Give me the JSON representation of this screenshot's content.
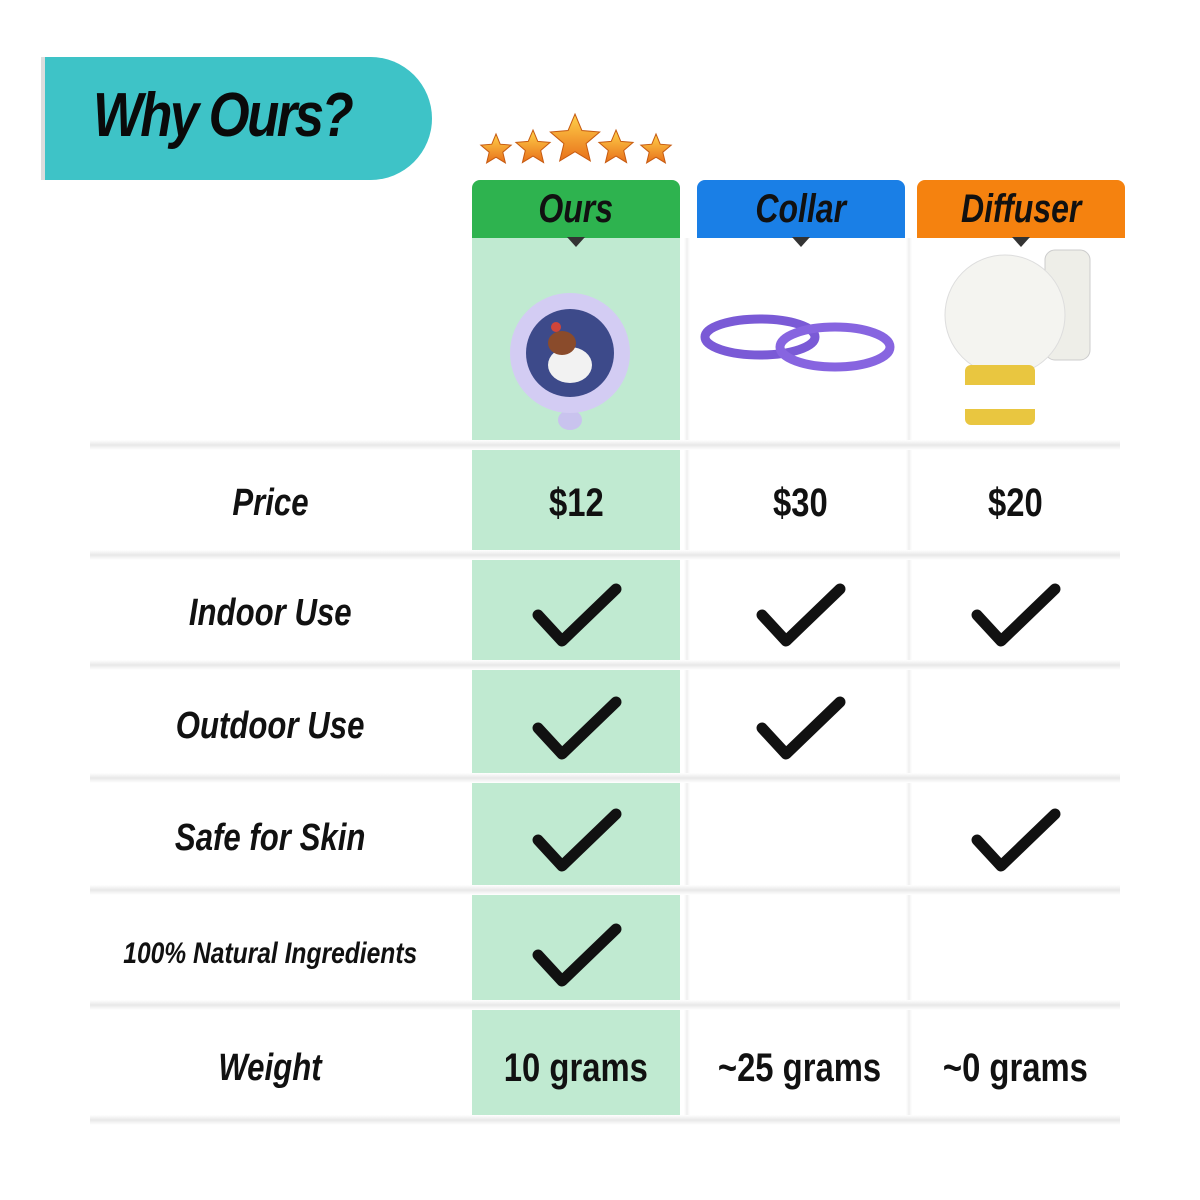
{
  "banner": {
    "title": "Why Ours?",
    "color": "#3ec3c7"
  },
  "rating": {
    "stars": 5,
    "max": 5,
    "color": "#f39a1c"
  },
  "products": [
    {
      "name": "Ours",
      "color": "#2eb34f",
      "image": "round-pet-tag-with-dog"
    },
    {
      "name": "Collar",
      "color": "#1a7fe6",
      "image": "purple-collars"
    },
    {
      "name": "Diffuser",
      "color": "#f5820f",
      "image": "plug-in-diffuser"
    }
  ],
  "highlight_color": "#c0ead1",
  "rows": [
    {
      "label": "Price",
      "values": [
        "$12",
        "$30",
        "$20"
      ]
    },
    {
      "label": "Indoor Use",
      "checks": [
        true,
        true,
        true
      ]
    },
    {
      "label": "Outdoor Use",
      "checks": [
        true,
        true,
        false
      ]
    },
    {
      "label": "Safe for Skin",
      "checks": [
        true,
        false,
        true
      ]
    },
    {
      "label": "100% Natural Ingredients",
      "checks": [
        true,
        false,
        false
      ]
    },
    {
      "label": "Weight",
      "values": [
        "10 grams",
        "~25 grams",
        "~0 grams"
      ]
    }
  ]
}
